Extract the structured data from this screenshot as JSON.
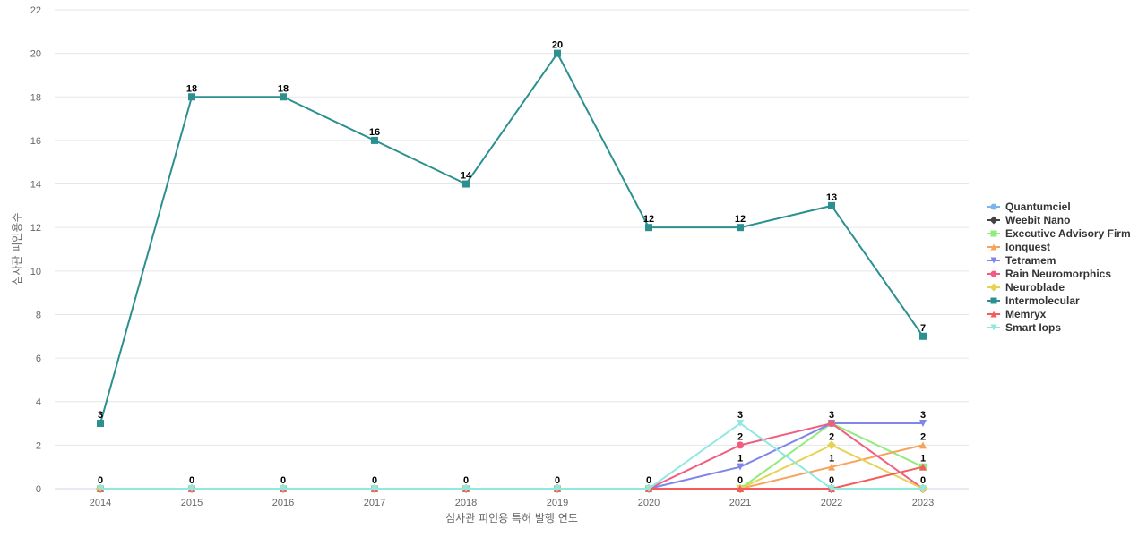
{
  "chart_data": {
    "type": "line",
    "title": "",
    "xlabel": "심사관 피인용 특허 발행 연도",
    "ylabel": "심사관 피인용수",
    "x": [
      "2014",
      "2015",
      "2016",
      "2017",
      "2018",
      "2019",
      "2020",
      "2021",
      "2022",
      "2023"
    ],
    "ylim": [
      0,
      22
    ],
    "yticks": [
      0,
      2,
      4,
      6,
      8,
      10,
      12,
      14,
      16,
      18,
      20,
      22
    ],
    "grid": true,
    "legend_position": "right",
    "series": [
      {
        "name": "Quantumciel",
        "color": "#7cb5ec",
        "marker": "circle",
        "values": [
          0,
          0,
          0,
          0,
          0,
          0,
          0,
          0,
          0,
          0
        ]
      },
      {
        "name": "Weebit Nano",
        "color": "#434348",
        "marker": "diamond",
        "values": [
          0,
          0,
          0,
          0,
          0,
          0,
          0,
          0,
          0,
          0
        ]
      },
      {
        "name": "Executive Advisory Firm",
        "color": "#90ed7d",
        "marker": "square",
        "values": [
          0,
          0,
          0,
          0,
          0,
          0,
          0,
          0,
          3,
          1
        ]
      },
      {
        "name": "Ionquest",
        "color": "#f7a35c",
        "marker": "triangle",
        "values": [
          0,
          0,
          0,
          0,
          0,
          0,
          0,
          0,
          1,
          2
        ]
      },
      {
        "name": "Tetramem",
        "color": "#8085e9",
        "marker": "triangle-down",
        "values": [
          0,
          0,
          0,
          0,
          0,
          0,
          0,
          1,
          3,
          3
        ]
      },
      {
        "name": "Rain Neuromorphics",
        "color": "#f15c80",
        "marker": "circle",
        "values": [
          0,
          0,
          0,
          0,
          0,
          0,
          0,
          2,
          3,
          0
        ]
      },
      {
        "name": "Neuroblade",
        "color": "#e4d354",
        "marker": "diamond",
        "values": [
          0,
          0,
          0,
          0,
          0,
          0,
          0,
          0,
          2,
          0
        ]
      },
      {
        "name": "Intermolecular",
        "color": "#2b908f",
        "marker": "square",
        "values": [
          3,
          18,
          18,
          16,
          14,
          20,
          12,
          12,
          13,
          7
        ]
      },
      {
        "name": "Memryx",
        "color": "#f45b5b",
        "marker": "triangle",
        "values": [
          0,
          0,
          0,
          0,
          0,
          0,
          0,
          0,
          0,
          1
        ]
      },
      {
        "name": "Smart Iops",
        "color": "#91e8e1",
        "marker": "triangle-down",
        "values": [
          0,
          0,
          0,
          0,
          0,
          0,
          0,
          3,
          0,
          0
        ]
      }
    ],
    "data_labels": [
      {
        "x": "2014",
        "text": "3",
        "y": 3
      },
      {
        "x": "2014",
        "text": "0",
        "y": 0
      },
      {
        "x": "2015",
        "text": "18",
        "y": 18
      },
      {
        "x": "2015",
        "text": "0",
        "y": 0
      },
      {
        "x": "2016",
        "text": "18",
        "y": 18
      },
      {
        "x": "2016",
        "text": "0",
        "y": 0
      },
      {
        "x": "2017",
        "text": "16",
        "y": 16
      },
      {
        "x": "2017",
        "text": "0",
        "y": 0
      },
      {
        "x": "2018",
        "text": "14",
        "y": 14
      },
      {
        "x": "2018",
        "text": "0",
        "y": 0
      },
      {
        "x": "2019",
        "text": "20",
        "y": 20
      },
      {
        "x": "2019",
        "text": "0",
        "y": 0
      },
      {
        "x": "2020",
        "text": "12",
        "y": 12
      },
      {
        "x": "2020",
        "text": "0",
        "y": 0
      },
      {
        "x": "2021",
        "text": "12",
        "y": 12
      },
      {
        "x": "2021",
        "text": "3",
        "y": 3
      },
      {
        "x": "2021",
        "text": "2",
        "y": 2
      },
      {
        "x": "2021",
        "text": "1",
        "y": 1
      },
      {
        "x": "2021",
        "text": "0",
        "y": 0
      },
      {
        "x": "2022",
        "text": "13",
        "y": 13
      },
      {
        "x": "2022",
        "text": "3",
        "y": 3
      },
      {
        "x": "2022",
        "text": "2",
        "y": 2
      },
      {
        "x": "2022",
        "text": "1",
        "y": 1
      },
      {
        "x": "2022",
        "text": "0",
        "y": 0
      },
      {
        "x": "2023",
        "text": "7",
        "y": 7
      },
      {
        "x": "2023",
        "text": "3",
        "y": 3
      },
      {
        "x": "2023",
        "text": "2",
        "y": 2
      },
      {
        "x": "2023",
        "text": "1",
        "y": 1
      },
      {
        "x": "2023",
        "text": "0",
        "y": 0
      }
    ]
  }
}
